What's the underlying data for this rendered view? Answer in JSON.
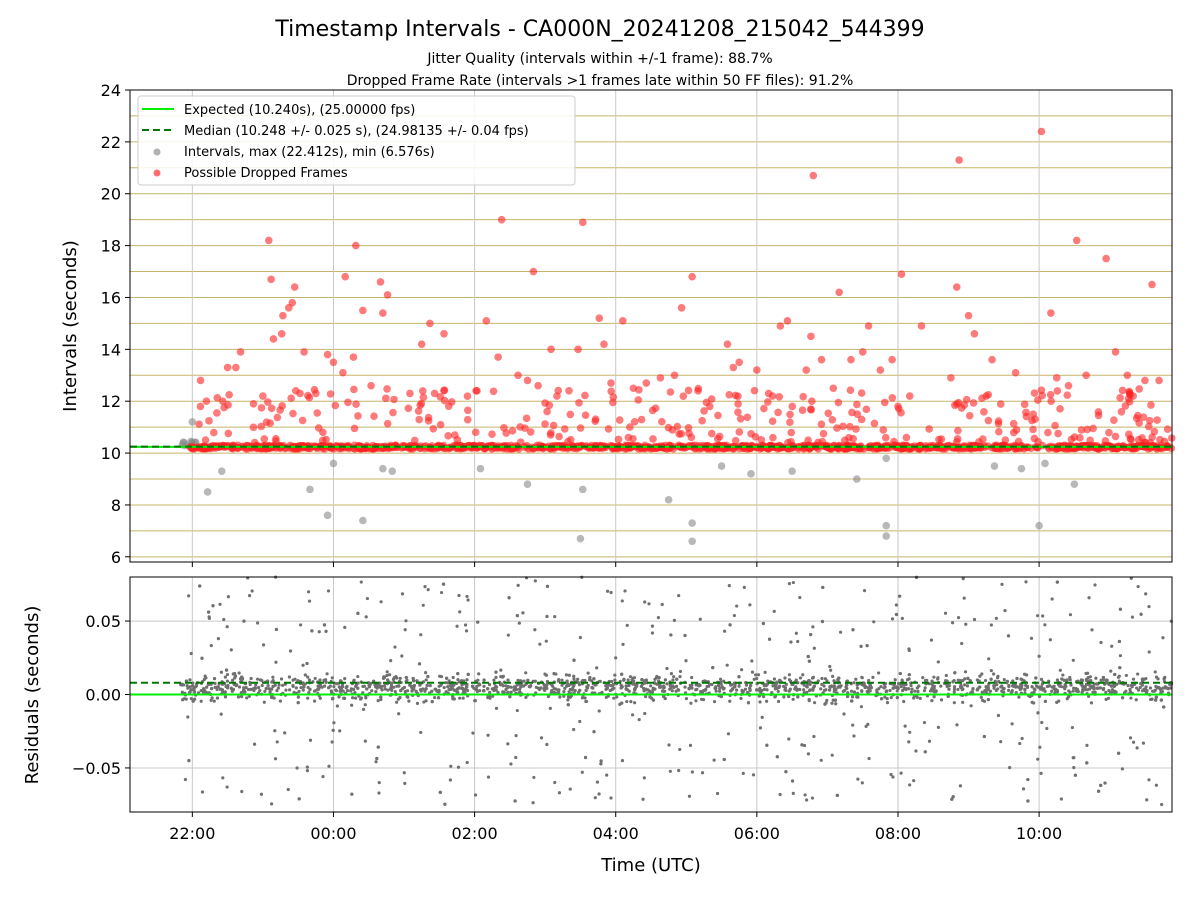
{
  "figure": {
    "title": "Timestamp Intervals - CA000N_20241208_215042_544399",
    "subtitle_1": "Jitter Quality (intervals within +/-1 frame): 88.7%",
    "subtitle_2": "Dropped Frame Rate (intervals >1 frames late within 50 FF files): 91.2%"
  },
  "colors": {
    "expected": "#00ee00",
    "median": "#007700",
    "intervals": "#888888",
    "dropped": "#ff2222",
    "h_grid": "#c8b46a",
    "v_grid": "#c8c8c8",
    "residuals": "#707070"
  },
  "chart_data": [
    {
      "type": "scatter",
      "panel": "top",
      "ylabel": "Intervals (seconds)",
      "xlim": [
        "21:07",
        "11:53"
      ],
      "ylim": [
        5.8,
        24
      ],
      "x_ticks": [
        "22:00",
        "00:00",
        "02:00",
        "04:00",
        "06:00",
        "08:00",
        "10:00"
      ],
      "y_ticks": [
        "6",
        "8",
        "10",
        "12",
        "14",
        "16",
        "18",
        "20",
        "22",
        "24"
      ],
      "grid": "horizontal at every 1 s, vertical at x ticks",
      "legend": {
        "placement": "top-left",
        "entries": [
          "Expected (10.240s), (25.00000 fps)",
          "Median (10.248 +/- 0.025 s), (24.98135 +/- 0.04 fps)",
          "Intervals, max (22.412s), min (6.576s)",
          "Possible Dropped Frames"
        ]
      },
      "expected_value": 10.24,
      "median_value": 10.248,
      "data_range": {
        "start": "21:50",
        "end": "11:53"
      },
      "baseline_band": [
        10.16,
        10.3
      ],
      "dropped_outliers": [
        {
          "x": "22:07",
          "y": 12.8
        },
        {
          "x": "22:12",
          "y": 12.0
        },
        {
          "x": "22:30",
          "y": 13.3
        },
        {
          "x": "22:37",
          "y": 13.3
        },
        {
          "x": "22:41",
          "y": 13.9
        },
        {
          "x": "22:52",
          "y": 11.9
        },
        {
          "x": "23:00",
          "y": 12.2
        },
        {
          "x": "23:05",
          "y": 18.2
        },
        {
          "x": "23:07",
          "y": 16.7
        },
        {
          "x": "23:09",
          "y": 14.4
        },
        {
          "x": "23:16",
          "y": 14.6
        },
        {
          "x": "23:17",
          "y": 15.3
        },
        {
          "x": "23:22",
          "y": 15.6
        },
        {
          "x": "23:25",
          "y": 15.8
        },
        {
          "x": "23:27",
          "y": 16.4
        },
        {
          "x": "23:28",
          "y": 12.4
        },
        {
          "x": "23:35",
          "y": 13.9
        },
        {
          "x": "23:45",
          "y": 12.3
        },
        {
          "x": "23:51",
          "y": 10.8
        },
        {
          "x": "23:55",
          "y": 13.8
        },
        {
          "x": "24:00",
          "y": 13.5
        },
        {
          "x": "24:08",
          "y": 13.1
        },
        {
          "x": "24:10",
          "y": 16.8
        },
        {
          "x": "24:17",
          "y": 13.7
        },
        {
          "x": "24:19",
          "y": 18.0
        },
        {
          "x": "24:25",
          "y": 15.5
        },
        {
          "x": "24:32",
          "y": 12.6
        },
        {
          "x": "24:40",
          "y": 16.6
        },
        {
          "x": "24:42",
          "y": 15.4
        },
        {
          "x": "24:46",
          "y": 16.1
        },
        {
          "x": "25:05",
          "y": 12.3
        },
        {
          "x": "25:15",
          "y": 14.2
        },
        {
          "x": "25:22",
          "y": 15.0
        },
        {
          "x": "25:26",
          "y": 12.3
        },
        {
          "x": "25:34",
          "y": 14.6
        },
        {
          "x": "26:02",
          "y": 12.4
        },
        {
          "x": "26:10",
          "y": 15.1
        },
        {
          "x": "26:20",
          "y": 13.7
        },
        {
          "x": "26:23",
          "y": 19.0
        },
        {
          "x": "26:37",
          "y": 13.0
        },
        {
          "x": "26:45",
          "y": 12.8
        },
        {
          "x": "26:50",
          "y": 17.0
        },
        {
          "x": "26:54",
          "y": 12.6
        },
        {
          "x": "27:05",
          "y": 14.0
        },
        {
          "x": "27:10",
          "y": 12.2
        },
        {
          "x": "27:28",
          "y": 14.0
        },
        {
          "x": "27:32",
          "y": 18.9
        },
        {
          "x": "27:46",
          "y": 15.2
        },
        {
          "x": "27:50",
          "y": 14.2
        },
        {
          "x": "27:56",
          "y": 12.7
        },
        {
          "x": "28:06",
          "y": 15.1
        },
        {
          "x": "28:15",
          "y": 12.5
        },
        {
          "x": "28:26",
          "y": 12.7
        },
        {
          "x": "28:38",
          "y": 12.9
        },
        {
          "x": "28:50",
          "y": 13.0
        },
        {
          "x": "28:56",
          "y": 15.6
        },
        {
          "x": "29:05",
          "y": 16.8
        },
        {
          "x": "29:10",
          "y": 12.4
        },
        {
          "x": "29:20",
          "y": 11.8
        },
        {
          "x": "29:35",
          "y": 14.2
        },
        {
          "x": "29:40",
          "y": 13.3
        },
        {
          "x": "29:45",
          "y": 13.5
        },
        {
          "x": "30:00",
          "y": 13.2
        },
        {
          "x": "30:10",
          "y": 12.3
        },
        {
          "x": "30:20",
          "y": 14.9
        },
        {
          "x": "30:26",
          "y": 15.1
        },
        {
          "x": "30:42",
          "y": 13.2
        },
        {
          "x": "30:46",
          "y": 14.5
        },
        {
          "x": "30:48",
          "y": 20.7
        },
        {
          "x": "30:55",
          "y": 13.6
        },
        {
          "x": "31:05",
          "y": 12.5
        },
        {
          "x": "31:10",
          "y": 16.2
        },
        {
          "x": "31:20",
          "y": 13.6
        },
        {
          "x": "31:30",
          "y": 13.9
        },
        {
          "x": "31:35",
          "y": 14.9
        },
        {
          "x": "31:45",
          "y": 13.2
        },
        {
          "x": "31:55",
          "y": 13.6
        },
        {
          "x": "32:00",
          "y": 11.8
        },
        {
          "x": "32:03",
          "y": 16.9
        },
        {
          "x": "32:10",
          "y": 12.2
        },
        {
          "x": "32:20",
          "y": 14.9
        },
        {
          "x": "32:45",
          "y": 12.9
        },
        {
          "x": "32:50",
          "y": 16.4
        },
        {
          "x": "32:52",
          "y": 21.3
        },
        {
          "x": "33:00",
          "y": 15.3
        },
        {
          "x": "33:05",
          "y": 14.6
        },
        {
          "x": "33:15",
          "y": 12.2
        },
        {
          "x": "33:20",
          "y": 13.6
        },
        {
          "x": "33:40",
          "y": 13.1
        },
        {
          "x": "33:55",
          "y": 11.5
        },
        {
          "x": "34:02",
          "y": 22.4
        },
        {
          "x": "34:10",
          "y": 15.4
        },
        {
          "x": "34:15",
          "y": 12.9
        },
        {
          "x": "34:25",
          "y": 12.6
        },
        {
          "x": "34:32",
          "y": 18.2
        },
        {
          "x": "34:40",
          "y": 13.0
        },
        {
          "x": "34:57",
          "y": 17.5
        },
        {
          "x": "35:05",
          "y": 13.9
        },
        {
          "x": "35:15",
          "y": 13.0
        },
        {
          "x": "35:20",
          "y": 12.2
        },
        {
          "x": "35:30",
          "y": 12.8
        },
        {
          "x": "35:36",
          "y": 16.5
        },
        {
          "x": "35:42",
          "y": 12.8
        }
      ],
      "low_intervals": [
        {
          "x": "22:00",
          "y": 11.2
        },
        {
          "x": "22:13",
          "y": 8.5
        },
        {
          "x": "22:25",
          "y": 9.3
        },
        {
          "x": "23:40",
          "y": 8.6
        },
        {
          "x": "23:55",
          "y": 7.6
        },
        {
          "x": "24:00",
          "y": 9.6
        },
        {
          "x": "24:25",
          "y": 7.4
        },
        {
          "x": "24:42",
          "y": 9.4
        },
        {
          "x": "24:50",
          "y": 9.3
        },
        {
          "x": "26:05",
          "y": 9.4
        },
        {
          "x": "26:45",
          "y": 8.8
        },
        {
          "x": "27:30",
          "y": 6.7
        },
        {
          "x": "27:32",
          "y": 8.6
        },
        {
          "x": "28:45",
          "y": 8.2
        },
        {
          "x": "29:05",
          "y": 7.3
        },
        {
          "x": "29:05",
          "y": 6.6
        },
        {
          "x": "29:30",
          "y": 9.5
        },
        {
          "x": "29:55",
          "y": 9.2
        },
        {
          "x": "30:30",
          "y": 9.3
        },
        {
          "x": "31:25",
          "y": 9.0
        },
        {
          "x": "31:50",
          "y": 9.8
        },
        {
          "x": "31:50",
          "y": 7.2
        },
        {
          "x": "31:50",
          "y": 6.8
        },
        {
          "x": "33:22",
          "y": 9.5
        },
        {
          "x": "33:45",
          "y": 9.4
        },
        {
          "x": "34:00",
          "y": 7.2
        },
        {
          "x": "34:05",
          "y": 9.6
        },
        {
          "x": "34:30",
          "y": 8.8
        }
      ]
    },
    {
      "type": "scatter",
      "panel": "bottom",
      "xlabel": "Time (UTC)",
      "ylabel": "Residuals (seconds)",
      "xlim": [
        "21:07",
        "11:53"
      ],
      "ylim": [
        -0.08,
        0.08
      ],
      "x_ticks": [
        "22:00",
        "00:00",
        "02:00",
        "04:00",
        "06:00",
        "08:00",
        "10:00"
      ],
      "y_ticks": [
        "−0.05",
        "0.00",
        "0.05"
      ],
      "grid": "on",
      "expected_residual": 0.0,
      "median_residual": 0.008,
      "residual_band": [
        -0.02,
        0.03
      ],
      "point_count": 2400
    }
  ]
}
